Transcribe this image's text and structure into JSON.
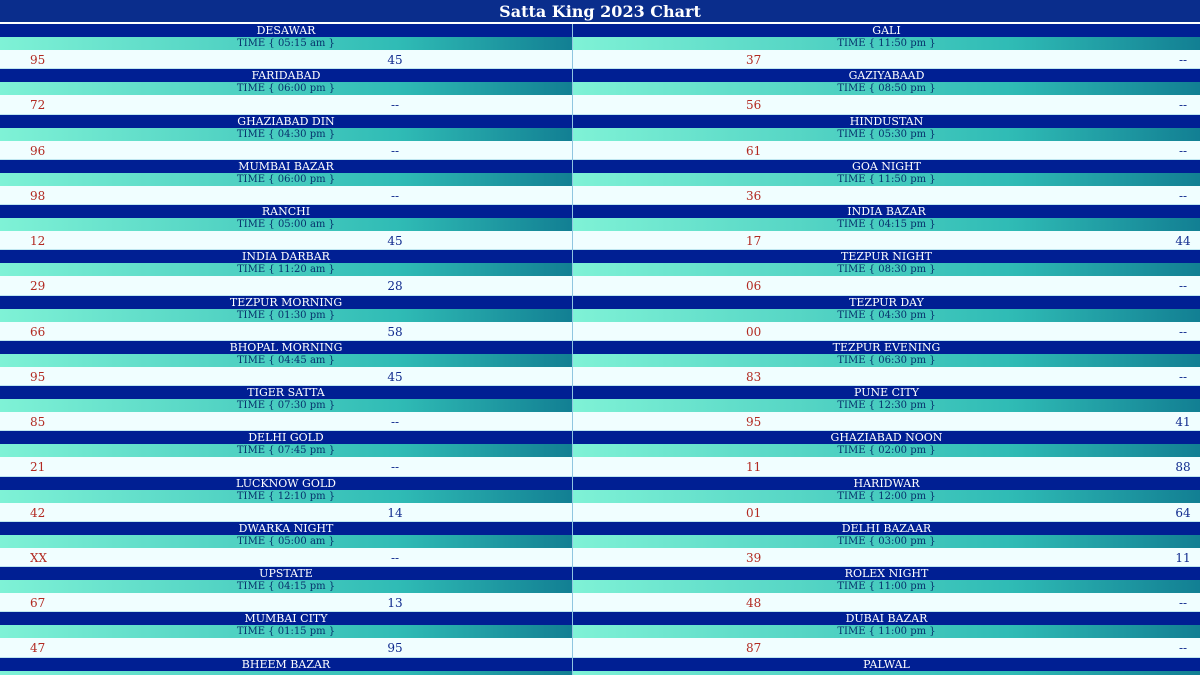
{
  "header": {
    "title": "Satta King 2023 Chart"
  },
  "games": [
    {
      "name": "DESAWAR",
      "time": "TIME { 05:15 am }",
      "yesterday": "95",
      "today": "45"
    },
    {
      "name": "GALI",
      "time": "TIME { 11:50 pm }",
      "yesterday": "37",
      "today": "--"
    },
    {
      "name": "FARIDABAD",
      "time": "TIME { 06:00 pm }",
      "yesterday": "72",
      "today": "--"
    },
    {
      "name": "GAZIYABAAD",
      "time": "TIME { 08:50 pm }",
      "yesterday": "56",
      "today": "--"
    },
    {
      "name": "GHAZIABAD DIN",
      "time": "TIME { 04:30 pm }",
      "yesterday": "96",
      "today": "--"
    },
    {
      "name": "HINDUSTAN",
      "time": "TIME { 05:30 pm }",
      "yesterday": "61",
      "today": "--"
    },
    {
      "name": "MUMBAI BAZAR",
      "time": "TIME { 06:00 pm }",
      "yesterday": "98",
      "today": "--"
    },
    {
      "name": "GOA NIGHT",
      "time": "TIME { 11:50 pm }",
      "yesterday": "36",
      "today": "--"
    },
    {
      "name": "RANCHI",
      "time": "TIME { 05:00 am }",
      "yesterday": "12",
      "today": "45"
    },
    {
      "name": "INDIA BAZAR",
      "time": "TIME { 04:15 pm }",
      "yesterday": "17",
      "today": "44"
    },
    {
      "name": "INDIA DARBAR",
      "time": "TIME { 11:20 am }",
      "yesterday": "29",
      "today": "28"
    },
    {
      "name": "TEZPUR NIGHT",
      "time": "TIME { 08:30 pm }",
      "yesterday": "06",
      "today": "--"
    },
    {
      "name": "TEZPUR MORNING",
      "time": "TIME { 01:30 pm }",
      "yesterday": "66",
      "today": "58"
    },
    {
      "name": "TEZPUR DAY",
      "time": "TIME { 04:30 pm }",
      "yesterday": "00",
      "today": "--"
    },
    {
      "name": "BHOPAL MORNING",
      "time": "TIME { 04:45 am }",
      "yesterday": "95",
      "today": "45"
    },
    {
      "name": "TEZPUR EVENING",
      "time": "TIME { 06:30 pm }",
      "yesterday": "83",
      "today": "--"
    },
    {
      "name": "TIGER SATTA",
      "time": "TIME { 07:30 pm }",
      "yesterday": "85",
      "today": "--"
    },
    {
      "name": "PUNE CITY",
      "time": "TIME { 12:30 pm }",
      "yesterday": "95",
      "today": "41"
    },
    {
      "name": "DELHI GOLD",
      "time": "TIME { 07:45 pm }",
      "yesterday": "21",
      "today": "--"
    },
    {
      "name": "GHAZIABAD NOON",
      "time": "TIME { 02:00 pm }",
      "yesterday": "11",
      "today": "88"
    },
    {
      "name": "LUCKNOW GOLD",
      "time": "TIME { 12:10 pm }",
      "yesterday": "42",
      "today": "14"
    },
    {
      "name": "HARIDWAR",
      "time": "TIME { 12:00 pm }",
      "yesterday": "01",
      "today": "64"
    },
    {
      "name": "DWARKA NIGHT",
      "time": "TIME { 05:00 am }",
      "yesterday": "XX",
      "today": "--"
    },
    {
      "name": "DELHI BAZAAR",
      "time": "TIME { 03:00 pm }",
      "yesterday": "39",
      "today": "11"
    },
    {
      "name": "UPSTATE",
      "time": "TIME { 04:15 pm }",
      "yesterday": "67",
      "today": "13"
    },
    {
      "name": "ROLEX NIGHT",
      "time": "TIME { 11:00 pm }",
      "yesterday": "48",
      "today": "--"
    },
    {
      "name": "MUMBAI CITY",
      "time": "TIME { 01:15 pm }",
      "yesterday": "47",
      "today": "95"
    },
    {
      "name": "DUBAI BAZAR",
      "time": "TIME { 11:00 pm }",
      "yesterday": "87",
      "today": "--"
    },
    {
      "name": "BHEEM BAZAR",
      "time": "",
      "yesterday": "",
      "today": ""
    },
    {
      "name": "PALWAL",
      "time": "",
      "yesterday": "",
      "today": ""
    }
  ],
  "colors": {
    "header_bg": "#0a2d8c",
    "name_bg": "#001f93",
    "time_bg_start": "#7ff2d6",
    "time_bg_end": "#127f93",
    "yesterday_text": "#b22a22",
    "today_text": "#102a8e",
    "value_bg": "#f0feff"
  }
}
